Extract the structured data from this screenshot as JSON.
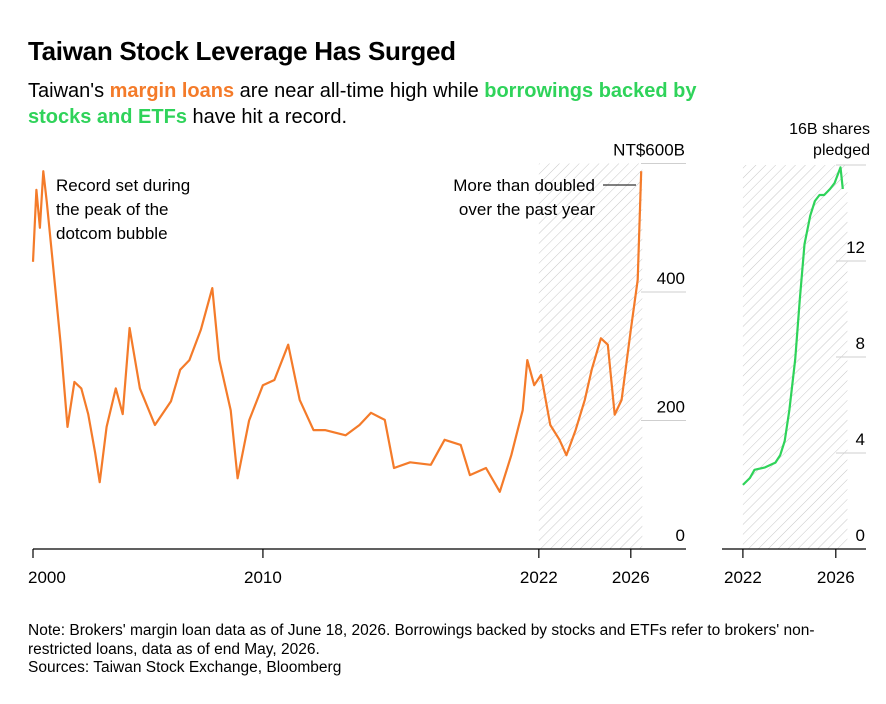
{
  "title": "Taiwan Stock Leverage Has Surged",
  "subtitle": [
    {
      "text": "Taiwan's "
    },
    {
      "text": "margin loans",
      "color": "#f47b2a"
    },
    {
      "text": " are near all-time high while "
    },
    {
      "text": "borrowings backed by stocks and ETFs",
      "color": "#2fd35a"
    },
    {
      "text": " have hit a record."
    }
  ],
  "note": "Note: Brokers' margin loan data as of June 18, 2026. Borrowings backed by stocks and ETFs refer to brokers' non-restricted loans, data as of end May, 2026.",
  "source": "Sources: Taiwan Stock Exchange, Bloomberg",
  "chart_data": [
    {
      "type": "line",
      "color": "#f47b2a",
      "x": [
        2000.0,
        2000.15,
        2000.3,
        2000.45,
        2000.6,
        2000.85,
        2001.2,
        2001.5,
        2001.8,
        2002.1,
        2002.4,
        2002.7,
        2002.9,
        2003.2,
        2003.6,
        2003.9,
        2004.2,
        2004.65,
        2005.3,
        2006.0,
        2006.4,
        2006.8,
        2007.3,
        2007.8,
        2008.1,
        2008.6,
        2008.9,
        2009.4,
        2010.0,
        2010.5,
        2011.1,
        2011.6,
        2012.2,
        2012.7,
        2013.6,
        2014.2,
        2014.7,
        2015.3,
        2015.7,
        2016.4,
        2017.3,
        2017.9,
        2018.6,
        2019.0,
        2019.7,
        2020.3,
        2020.8,
        2021.3,
        2021.5,
        2021.8,
        2022.1,
        2022.5,
        2022.9,
        2023.2,
        2023.6,
        2024.0,
        2024.3,
        2024.7,
        2025.0,
        2025.3,
        2025.6,
        2026.0,
        2026.3,
        2026.45
      ],
      "values": [
        447,
        559,
        500,
        588,
        540,
        450,
        320,
        190,
        260,
        250,
        210,
        150,
        104,
        190,
        250,
        210,
        344,
        250,
        193,
        230,
        279,
        294,
        341,
        406,
        295,
        216,
        110,
        200,
        255,
        263,
        318,
        232,
        185,
        185,
        177,
        193,
        212,
        201,
        126,
        135,
        131,
        170,
        162,
        115,
        126,
        89,
        146,
        216,
        294,
        255,
        271,
        193,
        170,
        146,
        185,
        232,
        279,
        328,
        318,
        209,
        232,
        341,
        419,
        588
      ],
      "xlim": [
        2000,
        2028.4
      ],
      "ylim": [
        0,
        600
      ],
      "xticks": [
        2000,
        2010,
        2022,
        2026
      ],
      "yticks": [
        0,
        200,
        400,
        {
          "value": 600,
          "label": "NT$600B"
        }
      ],
      "shade": [
        2022,
        2026.5
      ],
      "annotations": [
        {
          "lines": [
            "Record set during",
            "the peak of the",
            "dotcom bubble"
          ]
        },
        {
          "lines": [
            "More than doubled",
            "over the past year"
          ]
        }
      ]
    },
    {
      "type": "line",
      "color": "#2fd35a",
      "x": [
        2022.0,
        2022.3,
        2022.5,
        2022.95,
        2023.4,
        2023.6,
        2023.8,
        2024.0,
        2024.25,
        2024.45,
        2024.65,
        2024.9,
        2025.1,
        2025.3,
        2025.5,
        2025.75,
        2025.95,
        2026.2,
        2026.3
      ],
      "values": [
        2.67,
        2.96,
        3.3,
        3.4,
        3.6,
        3.9,
        4.5,
        5.8,
        7.9,
        10.4,
        12.7,
        13.9,
        14.5,
        14.75,
        14.75,
        15.0,
        15.25,
        15.9,
        15.0
      ],
      "xlim": [
        2021.1,
        2027.3
      ],
      "ylim": [
        0,
        16
      ],
      "xticks": [
        2022,
        2026
      ],
      "yticks": [
        0,
        4,
        8,
        12,
        {
          "value": 16,
          "label": "16B shares pledged"
        }
      ],
      "shade": [
        2022,
        2026.5
      ]
    }
  ]
}
